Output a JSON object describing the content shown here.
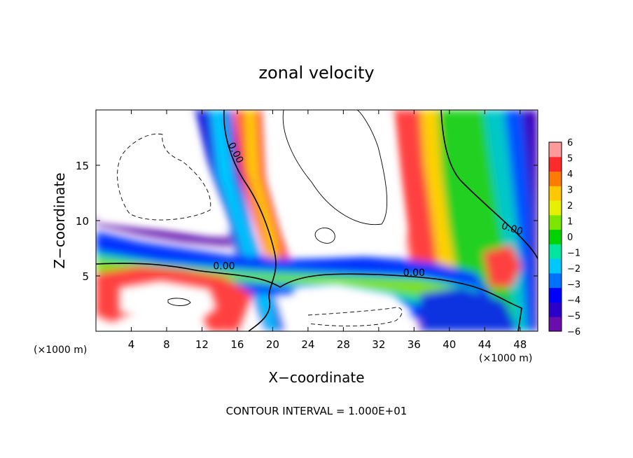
{
  "chart_data": {
    "type": "heatmap",
    "title": "zonal velocity",
    "xlabel": "X−coordinate",
    "ylabel": "Z−coordinate",
    "x_unit_left": "(×1000 m)",
    "x_unit_right": "(×1000 m)",
    "footer": "CONTOUR INTERVAL = 1.000E+01",
    "xlim": [
      0,
      50
    ],
    "ylim": [
      0,
      20
    ],
    "x_ticks": [
      4,
      8,
      12,
      16,
      20,
      24,
      28,
      32,
      36,
      40,
      44,
      48
    ],
    "y_ticks": [
      5,
      10,
      15
    ],
    "colorbar": {
      "min": -6,
      "max": 6,
      "ticks": [
        6,
        5,
        4,
        3,
        2,
        1,
        0,
        -1,
        -2,
        -3,
        -4,
        -5,
        -6
      ],
      "colors": [
        "#6a0dad",
        "#2b00c8",
        "#0000ff",
        "#0070ff",
        "#00c8ff",
        "#00e6a0",
        "#00d200",
        "#7be600",
        "#e6f000",
        "#ffc800",
        "#ff7a00",
        "#ff2a2a",
        "#ff9a9a"
      ]
    },
    "contour_labels": [
      {
        "text": "0.00",
        "x": 15.5,
        "y": 16.0,
        "rotate": 63
      },
      {
        "text": "0.00",
        "x": 14.5,
        "y": 5.6
      },
      {
        "text": "0.00",
        "x": 36.0,
        "y": 5.0
      },
      {
        "text": "0.00",
        "x": 47.0,
        "y": 9.0,
        "rotate": 18
      }
    ]
  }
}
